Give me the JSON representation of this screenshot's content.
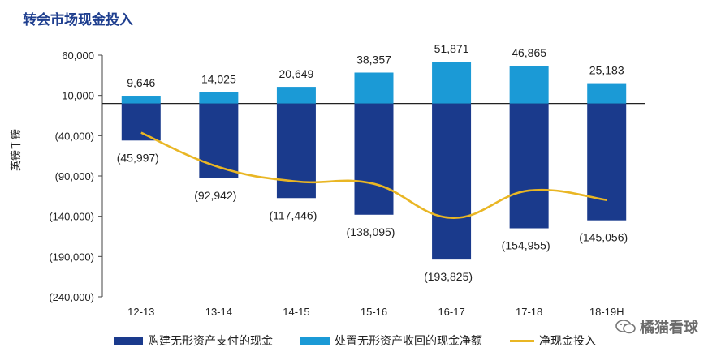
{
  "title": "转会市场现金投入",
  "watermark": "橘猫看球",
  "colors": {
    "purchase": "#1a3a8c",
    "disposal": "#1b9ad6",
    "net": "#e9b624",
    "title": "#1f3f8f"
  },
  "chart_data": {
    "type": "bar",
    "title": "转会市场现金投入",
    "ylabel": "英镑千镑",
    "xlabel": "",
    "ylim": [
      -240000,
      60000
    ],
    "yticks": [
      60000,
      10000,
      -40000,
      -90000,
      -140000,
      -190000,
      -240000
    ],
    "ytick_labels": [
      "60,000",
      "10,000",
      "(40,000)",
      "(90,000)",
      "(140,000)",
      "(190,000)",
      "(240,000)"
    ],
    "categories": [
      "12-13",
      "13-14",
      "14-15",
      "15-16",
      "16-17",
      "17-18",
      "18-19H"
    ],
    "series": [
      {
        "name": "购建无形资产支付的现金",
        "type": "bar",
        "values": [
          -45997,
          -92942,
          -117446,
          -138095,
          -193825,
          -154955,
          -145056
        ],
        "labels": [
          "(45,997)",
          "(92,942)",
          "(117,446)",
          "(138,095)",
          "(193,825)",
          "(154,955)",
          "(145,056)"
        ]
      },
      {
        "name": "处置无形资产收回的现金净额",
        "type": "bar",
        "values": [
          9646,
          14025,
          20649,
          38357,
          51871,
          46865,
          25183
        ],
        "labels": [
          "9,646",
          "14,025",
          "20,649",
          "38,357",
          "51,871",
          "46,865",
          "25,183"
        ]
      },
      {
        "name": "净现金投入",
        "type": "line",
        "values": [
          -36351,
          -78917,
          -96797,
          -99738,
          -141954,
          -108090,
          -119873
        ]
      }
    ],
    "legend": "bottom",
    "grid": false
  }
}
